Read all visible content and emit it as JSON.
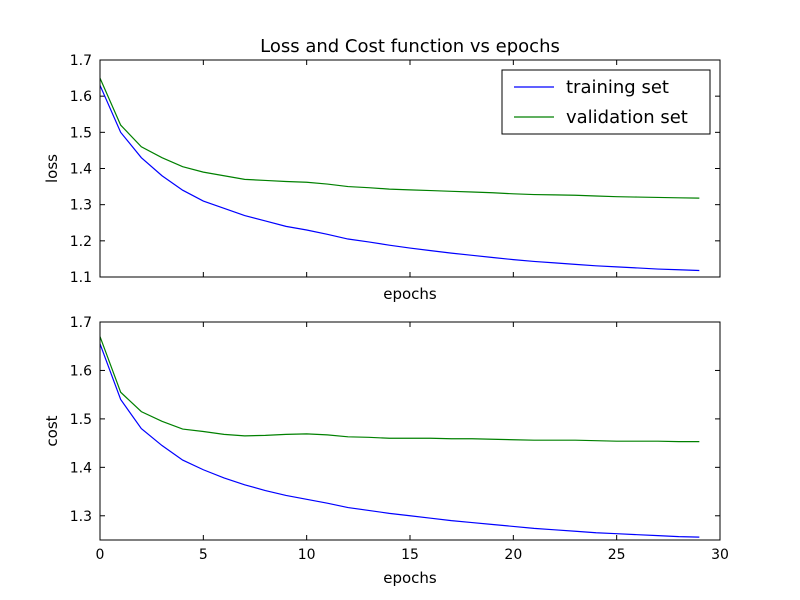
{
  "figure_title": "Loss and Cost function vs epochs",
  "chart_data": [
    {
      "type": "line",
      "title": "Loss and Cost function vs epochs",
      "xlabel": "epochs",
      "ylabel": "loss",
      "xlim": [
        0,
        30
      ],
      "ylim": [
        1.1,
        1.7
      ],
      "x_tick_labels_visible": false,
      "xticks": [
        0,
        5,
        10,
        15,
        20,
        25,
        30
      ],
      "yticks": [
        "1.1",
        "1.2",
        "1.3",
        "1.4",
        "1.5",
        "1.6",
        "1.7"
      ],
      "grid": false,
      "legend": {
        "placement": "top-right",
        "entries": [
          "training set",
          "validation set"
        ]
      },
      "x": [
        0,
        1,
        2,
        3,
        4,
        5,
        6,
        7,
        8,
        9,
        10,
        11,
        12,
        13,
        14,
        15,
        16,
        17,
        18,
        19,
        20,
        21,
        22,
        23,
        24,
        25,
        26,
        27,
        28,
        29
      ],
      "series": [
        {
          "name": "training set",
          "color": "#0000ff",
          "values": [
            1.63,
            1.5,
            1.43,
            1.38,
            1.34,
            1.31,
            1.29,
            1.27,
            1.255,
            1.24,
            1.23,
            1.218,
            1.205,
            1.197,
            1.188,
            1.18,
            1.173,
            1.166,
            1.16,
            1.154,
            1.148,
            1.143,
            1.139,
            1.135,
            1.131,
            1.128,
            1.125,
            1.122,
            1.12,
            1.118
          ]
        },
        {
          "name": "validation set",
          "color": "#008000",
          "values": [
            1.65,
            1.52,
            1.46,
            1.43,
            1.405,
            1.39,
            1.38,
            1.37,
            1.367,
            1.364,
            1.362,
            1.357,
            1.35,
            1.347,
            1.343,
            1.341,
            1.339,
            1.337,
            1.335,
            1.333,
            1.33,
            1.328,
            1.327,
            1.326,
            1.324,
            1.322,
            1.321,
            1.32,
            1.319,
            1.318
          ]
        }
      ]
    },
    {
      "type": "line",
      "title": "",
      "xlabel": "epochs",
      "ylabel": "cost",
      "xlim": [
        0,
        30
      ],
      "ylim": [
        1.25,
        1.7
      ],
      "xticks": [
        "0",
        "5",
        "10",
        "15",
        "20",
        "25",
        "30"
      ],
      "yticks": [
        "1.3",
        "1.4",
        "1.5",
        "1.6",
        "1.7"
      ],
      "grid": false,
      "x": [
        0,
        1,
        2,
        3,
        4,
        5,
        6,
        7,
        8,
        9,
        10,
        11,
        12,
        13,
        14,
        15,
        16,
        17,
        18,
        19,
        20,
        21,
        22,
        23,
        24,
        25,
        26,
        27,
        28,
        29
      ],
      "series": [
        {
          "name": "training set",
          "color": "#0000ff",
          "values": [
            1.655,
            1.54,
            1.48,
            1.445,
            1.415,
            1.395,
            1.378,
            1.364,
            1.352,
            1.342,
            1.334,
            1.326,
            1.317,
            1.311,
            1.305,
            1.3,
            1.295,
            1.29,
            1.286,
            1.282,
            1.278,
            1.274,
            1.271,
            1.268,
            1.265,
            1.263,
            1.261,
            1.259,
            1.257,
            1.256
          ]
        },
        {
          "name": "validation set",
          "color": "#008000",
          "values": [
            1.67,
            1.555,
            1.515,
            1.495,
            1.479,
            1.474,
            1.468,
            1.465,
            1.466,
            1.468,
            1.469,
            1.467,
            1.463,
            1.462,
            1.46,
            1.46,
            1.46,
            1.459,
            1.459,
            1.458,
            1.457,
            1.456,
            1.456,
            1.456,
            1.455,
            1.454,
            1.454,
            1.454,
            1.453,
            1.453
          ]
        }
      ]
    }
  ]
}
